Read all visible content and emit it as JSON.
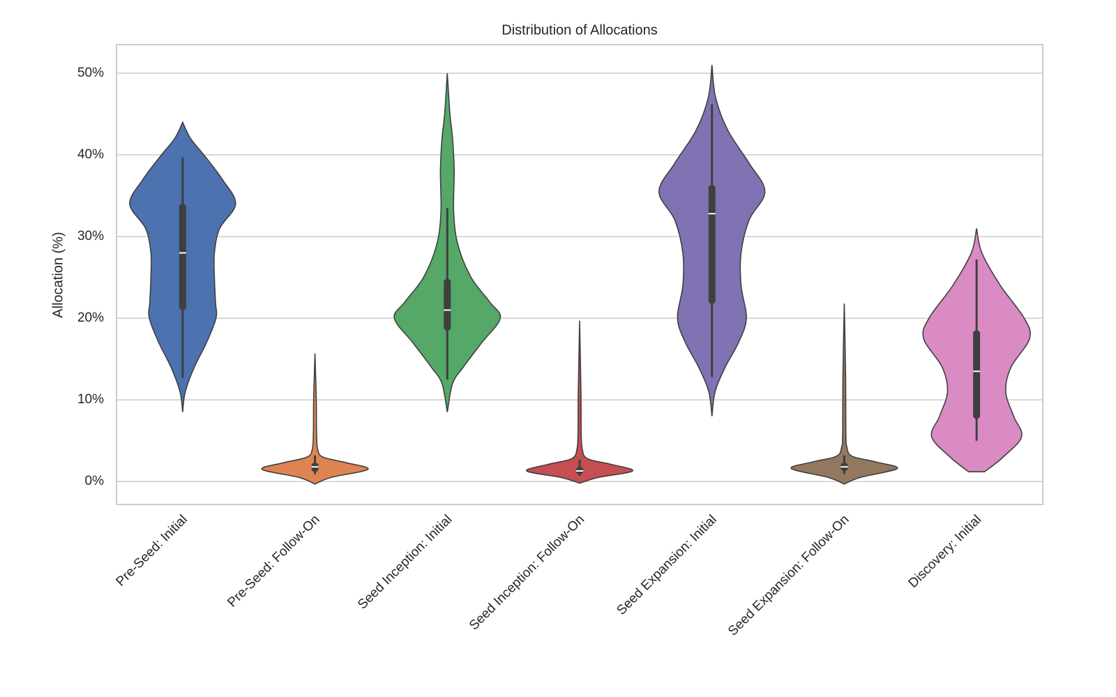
{
  "chart_data": {
    "type": "violin",
    "title": "Distribution of Allocations",
    "y_label": "Allocation (%)",
    "categories": [
      "Pre-Seed: Initial",
      "Pre-Seed: Follow-On",
      "Seed Inception: Initial",
      "Seed Inception: Follow-On",
      "Seed Expansion: Initial",
      "Seed Expansion: Follow-On",
      "Discovery: Initial"
    ],
    "ylim": [
      -2.8,
      53.5
    ],
    "yticks": [
      {
        "value": 0,
        "label": "0%"
      },
      {
        "value": 10,
        "label": "10%"
      },
      {
        "value": 20,
        "label": "20%"
      },
      {
        "value": 30,
        "label": "30%"
      },
      {
        "value": 40,
        "label": "40%"
      },
      {
        "value": 50,
        "label": "50%"
      }
    ],
    "grid": true,
    "violins": [
      {
        "color": "#4c72b0",
        "min": 12.7,
        "q1": 21,
        "median": 28,
        "q3": 34,
        "max": 39.7,
        "y": [
          8.5,
          11,
          14,
          17,
          20,
          22,
          25,
          28,
          31,
          34,
          37,
          40,
          42,
          44
        ],
        "density": [
          0,
          0.05,
          0.22,
          0.45,
          0.63,
          0.62,
          0.6,
          0.6,
          0.7,
          1.0,
          0.75,
          0.4,
          0.15,
          0
        ]
      },
      {
        "color": "#dd8452",
        "min": 0.9,
        "q1": 1.2,
        "median": 1.8,
        "q3": 2.3,
        "max": 3.2,
        "y": [
          -0.3,
          0.5,
          1.5,
          2.3,
          3,
          4,
          6,
          10,
          15.7
        ],
        "density": [
          0,
          0.3,
          1.0,
          0.6,
          0.15,
          0.05,
          0.03,
          0.025,
          0
        ]
      },
      {
        "color": "#55a868",
        "min": 12.5,
        "q1": 18.5,
        "median": 21,
        "q3": 24.8,
        "max": 33.5,
        "y": [
          8.5,
          12,
          14,
          17,
          20,
          22,
          25,
          29,
          33,
          38,
          42,
          45,
          50
        ],
        "density": [
          0,
          0.1,
          0.3,
          0.65,
          1.0,
          0.8,
          0.45,
          0.2,
          0.12,
          0.13,
          0.1,
          0.05,
          0
        ]
      },
      {
        "color": "#c44e52",
        "min": 0.7,
        "q1": 0.9,
        "median": 1.3,
        "q3": 1.8,
        "max": 2.7,
        "y": [
          -0.2,
          0.5,
          1.3,
          2.1,
          2.8,
          4,
          6,
          11,
          19.7
        ],
        "density": [
          0,
          0.35,
          1.0,
          0.6,
          0.15,
          0.05,
          0.03,
          0.025,
          0
        ]
      },
      {
        "color": "#8172b3",
        "min": 12.8,
        "q1": 21.8,
        "median": 32.8,
        "q3": 36.3,
        "max": 46.2,
        "y": [
          8,
          11,
          14,
          17,
          20,
          24,
          28,
          32,
          35.5,
          39,
          43,
          47,
          51
        ],
        "density": [
          0,
          0.06,
          0.25,
          0.5,
          0.65,
          0.55,
          0.55,
          0.7,
          1.0,
          0.7,
          0.3,
          0.07,
          0
        ]
      },
      {
        "color": "#937860",
        "min": 0.9,
        "q1": 1.3,
        "median": 1.8,
        "q3": 2.3,
        "max": 3.2,
        "y": [
          -0.3,
          0.5,
          1.6,
          2.4,
          3.1,
          4.2,
          6,
          13,
          21.8
        ],
        "density": [
          0,
          0.3,
          1.0,
          0.6,
          0.15,
          0.05,
          0.03,
          0.025,
          0
        ]
      },
      {
        "color": "#da8bc3",
        "min": 5,
        "q1": 7.7,
        "median": 13.5,
        "q3": 18.5,
        "max": 27.2,
        "y": [
          1.2,
          3,
          5.5,
          8,
          11,
          14,
          17.5,
          20,
          24,
          28,
          31
        ],
        "density": [
          0.15,
          0.5,
          0.85,
          0.7,
          0.55,
          0.65,
          1.0,
          0.9,
          0.45,
          0.1,
          0
        ]
      }
    ]
  }
}
